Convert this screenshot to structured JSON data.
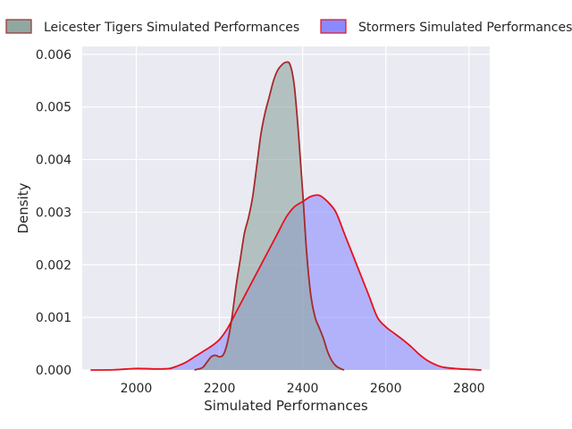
{
  "chart_data": {
    "type": "area",
    "title": "",
    "xlabel": "Simulated Performances",
    "ylabel": "Density",
    "xlim": [
      1870,
      2850
    ],
    "ylim": [
      0,
      0.00615
    ],
    "x_ticks": [
      2000,
      2200,
      2400,
      2600,
      2800
    ],
    "y_ticks": [
      0,
      0.001,
      0.002,
      0.003,
      0.004,
      0.005,
      0.006
    ],
    "x_tick_labels": [
      "2000",
      "2200",
      "2400",
      "2600",
      "2800"
    ],
    "y_tick_labels": [
      "0.000",
      "0.001",
      "0.002",
      "0.003",
      "0.004",
      "0.005",
      "0.006"
    ],
    "grid": true,
    "legend_position": "top",
    "series": [
      {
        "name": "Leicester Tigers Simulated Performances",
        "fill_color": "#8fa8a2",
        "line_color": "#a52a2a",
        "points": [
          [
            2140,
            0
          ],
          [
            2150,
            2e-05
          ],
          [
            2160,
            5e-05
          ],
          [
            2170,
            0.00015
          ],
          [
            2180,
            0.00025
          ],
          [
            2190,
            0.00028
          ],
          [
            2200,
            0.00025
          ],
          [
            2210,
            0.0003
          ],
          [
            2220,
            0.00055
          ],
          [
            2230,
            0.001
          ],
          [
            2240,
            0.0016
          ],
          [
            2250,
            0.0021
          ],
          [
            2260,
            0.0026
          ],
          [
            2270,
            0.0029
          ],
          [
            2280,
            0.0033
          ],
          [
            2290,
            0.0039
          ],
          [
            2300,
            0.0045
          ],
          [
            2310,
            0.0049
          ],
          [
            2320,
            0.0052
          ],
          [
            2330,
            0.0055
          ],
          [
            2340,
            0.0057
          ],
          [
            2350,
            0.0058
          ],
          [
            2360,
            0.00585
          ],
          [
            2370,
            0.0058
          ],
          [
            2380,
            0.0054
          ],
          [
            2390,
            0.0045
          ],
          [
            2400,
            0.0034
          ],
          [
            2410,
            0.0022
          ],
          [
            2420,
            0.0014
          ],
          [
            2430,
            0.001
          ],
          [
            2440,
            0.0008
          ],
          [
            2450,
            0.0006
          ],
          [
            2460,
            0.00035
          ],
          [
            2470,
            0.00018
          ],
          [
            2480,
            8e-05
          ],
          [
            2490,
            3e-05
          ],
          [
            2500,
            0
          ]
        ]
      },
      {
        "name": "Stormers Simulated Performances",
        "fill_color": "#8a8aff",
        "line_color": "#e8101e",
        "points": [
          [
            1890,
            0
          ],
          [
            1950,
            5e-06
          ],
          [
            2000,
            3e-05
          ],
          [
            2050,
            2e-05
          ],
          [
            2080,
            3e-05
          ],
          [
            2100,
            8e-05
          ],
          [
            2120,
            0.00015
          ],
          [
            2140,
            0.00025
          ],
          [
            2160,
            0.00035
          ],
          [
            2180,
            0.00045
          ],
          [
            2200,
            0.00058
          ],
          [
            2220,
            0.0008
          ],
          [
            2240,
            0.0011
          ],
          [
            2260,
            0.0014
          ],
          [
            2280,
            0.0017
          ],
          [
            2300,
            0.002
          ],
          [
            2320,
            0.0023
          ],
          [
            2340,
            0.0026
          ],
          [
            2360,
            0.0029
          ],
          [
            2380,
            0.0031
          ],
          [
            2400,
            0.0032
          ],
          [
            2420,
            0.0033
          ],
          [
            2440,
            0.00332
          ],
          [
            2460,
            0.0032
          ],
          [
            2480,
            0.003
          ],
          [
            2500,
            0.0026
          ],
          [
            2520,
            0.0022
          ],
          [
            2540,
            0.0018
          ],
          [
            2560,
            0.0014
          ],
          [
            2580,
            0.001
          ],
          [
            2600,
            0.00082
          ],
          [
            2620,
            0.0007
          ],
          [
            2640,
            0.00058
          ],
          [
            2660,
            0.00045
          ],
          [
            2680,
            0.0003
          ],
          [
            2700,
            0.00018
          ],
          [
            2720,
            0.0001
          ],
          [
            2740,
            5e-05
          ],
          [
            2780,
            2e-05
          ],
          [
            2830,
            0
          ]
        ]
      }
    ]
  }
}
